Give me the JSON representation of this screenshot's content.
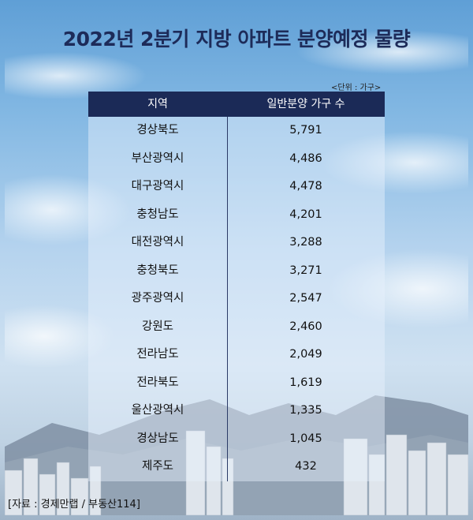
{
  "title": "2022년 2분기 지방 아파트 분양예정 물량",
  "unit_note": "<단위 : 가구>",
  "source": "[자료 : 경제만랩 / 부동산114]",
  "chart_data": {
    "type": "table",
    "title": "2022년 2분기 지방 아파트 분양예정 물량",
    "columns": [
      "지역",
      "일반분양 가구 수"
    ],
    "rows": [
      {
        "region": "경상북도",
        "value": "5,791"
      },
      {
        "region": "부산광역시",
        "value": "4,486"
      },
      {
        "region": "대구광역시",
        "value": "4,478"
      },
      {
        "region": "충청남도",
        "value": "4,201"
      },
      {
        "region": "대전광역시",
        "value": "3,288"
      },
      {
        "region": "충청북도",
        "value": "3,271"
      },
      {
        "region": "광주광역시",
        "value": "2,547"
      },
      {
        "region": "강원도",
        "value": "2,460"
      },
      {
        "region": "전라남도",
        "value": "2,049"
      },
      {
        "region": "전라북도",
        "value": "1,619"
      },
      {
        "region": "울산광역시",
        "value": "1,335"
      },
      {
        "region": "경상남도",
        "value": "1,045"
      },
      {
        "region": "제주도",
        "value": "432"
      }
    ]
  },
  "colors": {
    "header_bg": "#1b2a57",
    "title": "#1d2b59",
    "sky_top": "#5f9fd6",
    "sky_bottom": "#cfe1f1"
  }
}
